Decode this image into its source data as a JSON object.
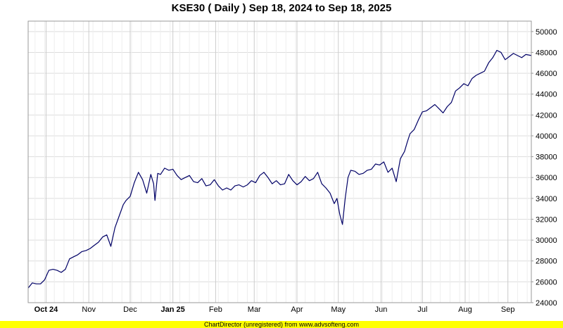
{
  "chart_data": {
    "type": "line",
    "title": "KSE30 ( Daily ) Sep 18, 2024 to Sep 18, 2025",
    "footer": "ChartDirector (unregistered) from www.advsofteng.com",
    "x_range": [
      "2024-09-18",
      "2025-09-18"
    ],
    "ylim": [
      24000,
      51000
    ],
    "y_ticks": [
      24000,
      26000,
      28000,
      30000,
      32000,
      34000,
      36000,
      38000,
      40000,
      42000,
      44000,
      46000,
      48000,
      50000
    ],
    "y_tick_labels": [
      "24000",
      "26000",
      "28000",
      "30000",
      "32000",
      "34000",
      "36000",
      "38000",
      "40000",
      "42000",
      "44000",
      "46000",
      "48000",
      "50000"
    ],
    "x_ticks": [
      {
        "label": "Oct 24",
        "date": "2024-10-01",
        "bold": true
      },
      {
        "label": "Nov",
        "date": "2024-11-01",
        "bold": false
      },
      {
        "label": "Dec",
        "date": "2024-12-01",
        "bold": false
      },
      {
        "label": "Jan 25",
        "date": "2025-01-01",
        "bold": true
      },
      {
        "label": "Feb",
        "date": "2025-02-01",
        "bold": false
      },
      {
        "label": "Mar",
        "date": "2025-03-01",
        "bold": false
      },
      {
        "label": "Apr",
        "date": "2025-04-01",
        "bold": false
      },
      {
        "label": "May",
        "date": "2025-05-01",
        "bold": false
      },
      {
        "label": "Jun",
        "date": "2025-06-01",
        "bold": false
      },
      {
        "label": "Jul",
        "date": "2025-07-01",
        "bold": false
      },
      {
        "label": "Aug",
        "date": "2025-08-01",
        "bold": false
      },
      {
        "label": "Sep",
        "date": "2025-09-01",
        "bold": false
      }
    ],
    "grid": true,
    "line_color": "#000066",
    "series": [
      {
        "x": [
          "2024-09-18",
          "2024-09-21",
          "2024-09-24",
          "2024-09-27",
          "2024-09-30",
          "2024-10-03",
          "2024-10-06",
          "2024-10-09",
          "2024-10-12",
          "2024-10-15",
          "2024-10-18",
          "2024-10-21",
          "2024-10-24",
          "2024-10-27",
          "2024-10-30",
          "2024-11-02",
          "2024-11-05",
          "2024-11-08",
          "2024-11-11",
          "2024-11-14",
          "2024-11-17",
          "2024-11-20",
          "2024-11-23",
          "2024-11-26",
          "2024-11-28",
          "2024-12-01",
          "2024-12-04",
          "2024-12-07",
          "2024-12-10",
          "2024-12-13",
          "2024-12-16",
          "2024-12-18",
          "2024-12-19",
          "2024-12-21",
          "2024-12-23",
          "2024-12-26",
          "2024-12-29",
          "2025-01-01",
          "2025-01-04",
          "2025-01-07",
          "2025-01-10",
          "2025-01-13",
          "2025-01-16",
          "2025-01-19",
          "2025-01-22",
          "2025-01-25",
          "2025-01-28",
          "2025-01-31",
          "2025-02-03",
          "2025-02-06",
          "2025-02-09",
          "2025-02-12",
          "2025-02-15",
          "2025-02-18",
          "2025-02-21",
          "2025-02-24",
          "2025-02-27",
          "2025-03-02",
          "2025-03-05",
          "2025-03-08",
          "2025-03-11",
          "2025-03-14",
          "2025-03-17",
          "2025-03-20",
          "2025-03-23",
          "2025-03-26",
          "2025-03-29",
          "2025-04-01",
          "2025-04-04",
          "2025-04-07",
          "2025-04-10",
          "2025-04-13",
          "2025-04-16",
          "2025-04-19",
          "2025-04-22",
          "2025-04-25",
          "2025-04-28",
          "2025-04-30",
          "2025-05-02",
          "2025-05-04",
          "2025-05-06",
          "2025-05-08",
          "2025-05-10",
          "2025-05-13",
          "2025-05-16",
          "2025-05-19",
          "2025-05-22",
          "2025-05-25",
          "2025-05-28",
          "2025-05-31",
          "2025-06-03",
          "2025-06-06",
          "2025-06-09",
          "2025-06-12",
          "2025-06-15",
          "2025-06-18",
          "2025-06-20",
          "2025-06-22",
          "2025-06-25",
          "2025-06-28",
          "2025-07-01",
          "2025-07-04",
          "2025-07-07",
          "2025-07-10",
          "2025-07-13",
          "2025-07-16",
          "2025-07-19",
          "2025-07-22",
          "2025-07-25",
          "2025-07-28",
          "2025-07-31",
          "2025-08-03",
          "2025-08-06",
          "2025-08-09",
          "2025-08-12",
          "2025-08-15",
          "2025-08-18",
          "2025-08-21",
          "2025-08-24",
          "2025-08-27",
          "2025-08-30",
          "2025-09-02",
          "2025-09-05",
          "2025-09-08",
          "2025-09-11",
          "2025-09-14",
          "2025-09-18"
        ],
        "y": [
          25400,
          25900,
          25800,
          25800,
          26200,
          27100,
          27200,
          27100,
          26900,
          27200,
          28200,
          28400,
          28600,
          28900,
          29000,
          29200,
          29500,
          29800,
          30300,
          30500,
          29400,
          31200,
          32300,
          33400,
          33800,
          34200,
          35500,
          36500,
          35800,
          34500,
          36300,
          35400,
          33800,
          36400,
          36300,
          36900,
          36700,
          36800,
          36200,
          35800,
          36000,
          36200,
          35600,
          35500,
          35900,
          35200,
          35300,
          35800,
          35200,
          34800,
          35000,
          34800,
          35200,
          35300,
          35100,
          35300,
          35700,
          35500,
          36200,
          36500,
          36000,
          35400,
          35700,
          35300,
          35400,
          36300,
          35700,
          35300,
          35600,
          36100,
          35700,
          35900,
          36500,
          35400,
          35000,
          34500,
          33500,
          34000,
          32500,
          31500,
          34000,
          36000,
          36700,
          36600,
          36300,
          36400,
          36700,
          36800,
          37300,
          37200,
          37500,
          36500,
          36900,
          35600,
          37800,
          38500,
          39400,
          40200,
          40600,
          41500,
          42300,
          42400,
          42700,
          43000,
          42600,
          42200,
          42800,
          43200,
          44300,
          44600,
          45000,
          44800,
          45500,
          45800,
          46000,
          46200,
          47000,
          47500,
          48200,
          48000,
          47300,
          47600,
          47900,
          47700,
          47500,
          47800,
          47700
        ]
      }
    ]
  }
}
